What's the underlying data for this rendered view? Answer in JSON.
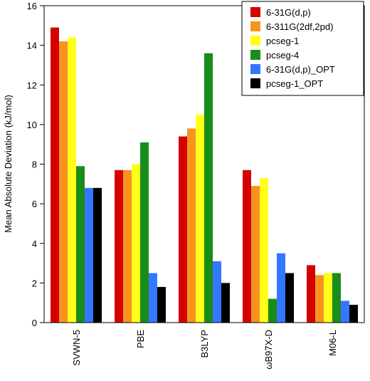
{
  "chart_data": {
    "type": "bar",
    "y_label": "Mean Absolute Deviation (kJ/mol)",
    "categories": [
      "SVWN-5",
      "PBE",
      "B3LYP",
      "ωB97X-D",
      "M06-L"
    ],
    "series": [
      {
        "name": "6-31G(d,p)",
        "color": "#d40000",
        "values": [
          14.9,
          7.7,
          9.4,
          7.7,
          2.9
        ]
      },
      {
        "name": "6-311G(2df,2pd)",
        "color": "#f7931e",
        "values": [
          14.2,
          7.7,
          9.8,
          6.9,
          2.4
        ]
      },
      {
        "name": "pcseg-1",
        "color": "#ffff1a",
        "values": [
          14.4,
          8.0,
          10.5,
          7.3,
          2.5
        ]
      },
      {
        "name": "pcseg-4",
        "color": "#1a8c1a",
        "values": [
          7.9,
          9.1,
          13.6,
          1.2,
          2.5
        ]
      },
      {
        "name": "6-31G(d,p)_OPT",
        "color": "#3377ff",
        "values": [
          6.8,
          2.5,
          3.1,
          3.5,
          1.1
        ]
      },
      {
        "name": "pcseg-1_OPT",
        "color": "#000000",
        "values": [
          6.8,
          1.8,
          2.0,
          2.5,
          0.9
        ]
      }
    ],
    "ylim": [
      0,
      16
    ],
    "yticks": [
      0,
      2,
      4,
      6,
      8,
      10,
      12,
      14,
      16
    ],
    "legend": "upper-right"
  }
}
